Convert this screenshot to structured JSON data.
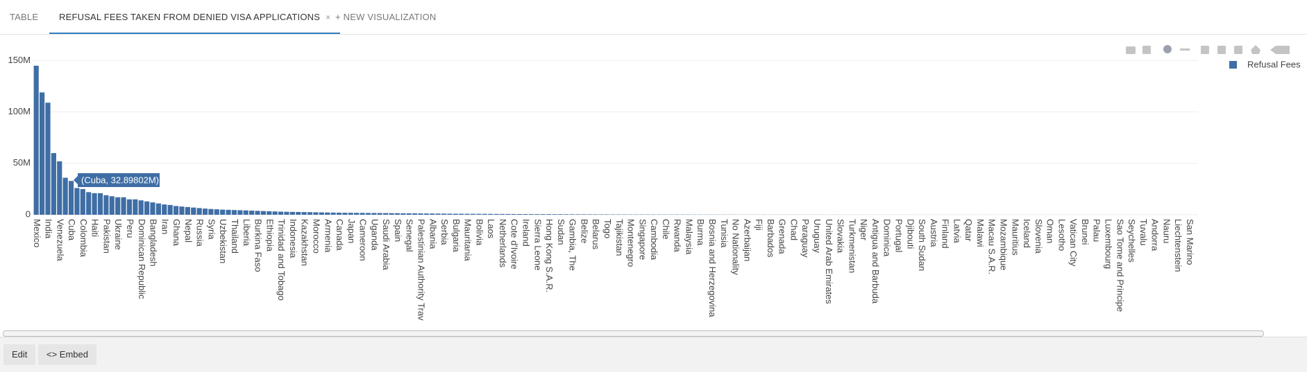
{
  "tabs": [
    "TABLE",
    "REFUSAL FEES TAKEN FROM DENIED VISA APPLICATIONS",
    "+ NEW VISUALIZATION"
  ],
  "tab_close": "×",
  "buttons": [
    "Edit",
    "<> Embed"
  ],
  "chart_data": {
    "type": "bar",
    "categories": [
      "Mexico",
      null,
      "India",
      null,
      "Venezuela",
      null,
      "Cuba",
      null,
      "Colombia",
      null,
      "Haiti",
      null,
      "Pakistan",
      null,
      "Ukraine",
      null,
      "Peru",
      null,
      "Dominican Republic",
      null,
      "Bangladesh",
      null,
      "Iran",
      null,
      "Ghana",
      null,
      "Nepal",
      null,
      "Russia",
      null,
      "Syria",
      null,
      "Uzbekistan",
      null,
      "Thailand",
      null,
      "Liberia",
      null,
      "Burkina Faso",
      null,
      "Ethiopia",
      null,
      "Trinidad and Tobago",
      null,
      "Indonesia",
      null,
      "Kazakhstan",
      null,
      "Morocco",
      null,
      "Armenia",
      null,
      "Canada",
      null,
      "Japan",
      null,
      "Cameroon",
      null,
      "Uganda",
      null,
      "Saudi Arabia",
      null,
      "Spain",
      null,
      "Senegal",
      null,
      "Palestinian Authority Trav",
      null,
      "Albania",
      null,
      "Serbia",
      null,
      "Bulgaria",
      null,
      "Mauritania",
      null,
      "Bolivia",
      null,
      "Laos",
      null,
      "Netherlands",
      null,
      "Cote d'Ivoire",
      null,
      "Ireland",
      null,
      "Sierra Leone",
      null,
      "Hong Kong S.A.R.",
      null,
      "Sudan",
      null,
      "Gambia, The",
      null,
      "Belize",
      null,
      "Belarus",
      null,
      "Togo",
      null,
      "Tajikistan",
      null,
      "Montenegro",
      null,
      "Singapore",
      null,
      "Cambodia",
      null,
      "Chile",
      null,
      "Rwanda",
      null,
      "Malaysia",
      null,
      "Burma",
      null,
      "Bosnia and Herzegovina",
      null,
      "Tunisia",
      null,
      "No Nationality",
      null,
      "Azerbaijan",
      null,
      "Fiji",
      null,
      "Barbados",
      null,
      "Grenada",
      null,
      "Chad",
      null,
      "Paraguay",
      null,
      "Uruguay",
      null,
      "United Arab Emirates",
      null,
      "Slovakia",
      null,
      "Turkmenistan",
      null,
      "Niger",
      null,
      "Antigua and Barbuda",
      null,
      "Dominica",
      null,
      "Portugal",
      null,
      "Djibouti",
      null,
      "South Sudan",
      null,
      "Austria",
      null,
      "Finland",
      null,
      "Latvia",
      null,
      "Qatar",
      null,
      "Malawi",
      null,
      "Macau S.A.R.",
      null,
      "Mozambique",
      null,
      "Mauritius",
      null,
      "Iceland",
      null,
      "Slovenia",
      null,
      "Oman",
      null,
      "Lesotho",
      null,
      "Vatican City",
      null,
      "Brunei",
      null,
      "Palau",
      null,
      "Luxembourg",
      null,
      "Sao Tome and Principe",
      null,
      "Seychelles",
      null,
      "Tuvalu",
      null,
      "Andorra",
      null,
      "Nauru",
      null,
      "Liechtenstein",
      null,
      "San Marino",
      null
    ],
    "series": [
      {
        "name": "Refusal Fees",
        "color": "#3f6ea5",
        "values": [
          145000000,
          119000000,
          109000000,
          60000000,
          52000000,
          36000000,
          32898020,
          26000000,
          25000000,
          22000000,
          21000000,
          21000000,
          19000000,
          18000000,
          17000000,
          17000000,
          15000000,
          15000000,
          14000000,
          13000000,
          12000000,
          11000000,
          10000000,
          9500000,
          8500000,
          8000000,
          7500000,
          7000000,
          6500000,
          6000000,
          5600000,
          5300000,
          5000000,
          4800000,
          4600000,
          4400000,
          4200000,
          4000000,
          3800000,
          3600000,
          3400000,
          3200000,
          3000000,
          2900000,
          2800000,
          2700000,
          2600000,
          2500000,
          2400000,
          2300000,
          2200000,
          2100000,
          2000000,
          1950000,
          1900000,
          1850000,
          1800000,
          1750000,
          1700000,
          1650000,
          1600000,
          1550000,
          1500000,
          1450000,
          1400000,
          1350000,
          1300000,
          1250000,
          1200000,
          1150000,
          1100000,
          1050000,
          1000000,
          970000,
          940000,
          910000,
          880000,
          850000,
          820000,
          790000,
          760000,
          730000,
          700000,
          680000,
          660000,
          640000,
          620000,
          600000,
          580000,
          560000,
          540000,
          520000,
          500000,
          480000,
          460000,
          440000,
          420000,
          400000,
          380000,
          360000,
          340000,
          320000,
          300000,
          290000,
          280000,
          270000,
          260000,
          250000,
          240000,
          230000,
          220000,
          210000,
          200000,
          190000,
          180000,
          170000,
          160000,
          150000,
          145000,
          140000,
          135000,
          130000,
          125000,
          120000,
          115000,
          110000,
          105000,
          100000,
          96000,
          92000,
          88000,
          84000,
          80000,
          76000,
          72000,
          68000,
          64000,
          60000,
          57000,
          54000,
          51000,
          48000,
          45000,
          42000,
          40000,
          38000,
          36000,
          34000,
          32000,
          30000,
          28000,
          26000,
          24000,
          22000,
          20000,
          19000,
          18000,
          17000,
          16000,
          15000,
          14000,
          13000,
          12000,
          11000,
          10000,
          9500,
          9000,
          8500,
          8000,
          7500,
          7000,
          6500,
          6000,
          5500,
          5000,
          4500,
          4000,
          3600,
          3200,
          2800,
          2400,
          2000,
          1800,
          1600,
          1400,
          1200,
          1000,
          900,
          800,
          700,
          600,
          500,
          400,
          350,
          300,
          250,
          200,
          150,
          100,
          50
        ]
      }
    ],
    "ylim": [
      0,
      155000000
    ],
    "yticks": [
      0,
      {
        "value": 50000000,
        "label": "50M"
      },
      {
        "value": 100000000,
        "label": "100M"
      },
      {
        "value": 150000000,
        "label": "150M"
      }
    ],
    "grid": true,
    "legend": "top-right",
    "hover_label": "(Cuba, 32.89802M)"
  }
}
